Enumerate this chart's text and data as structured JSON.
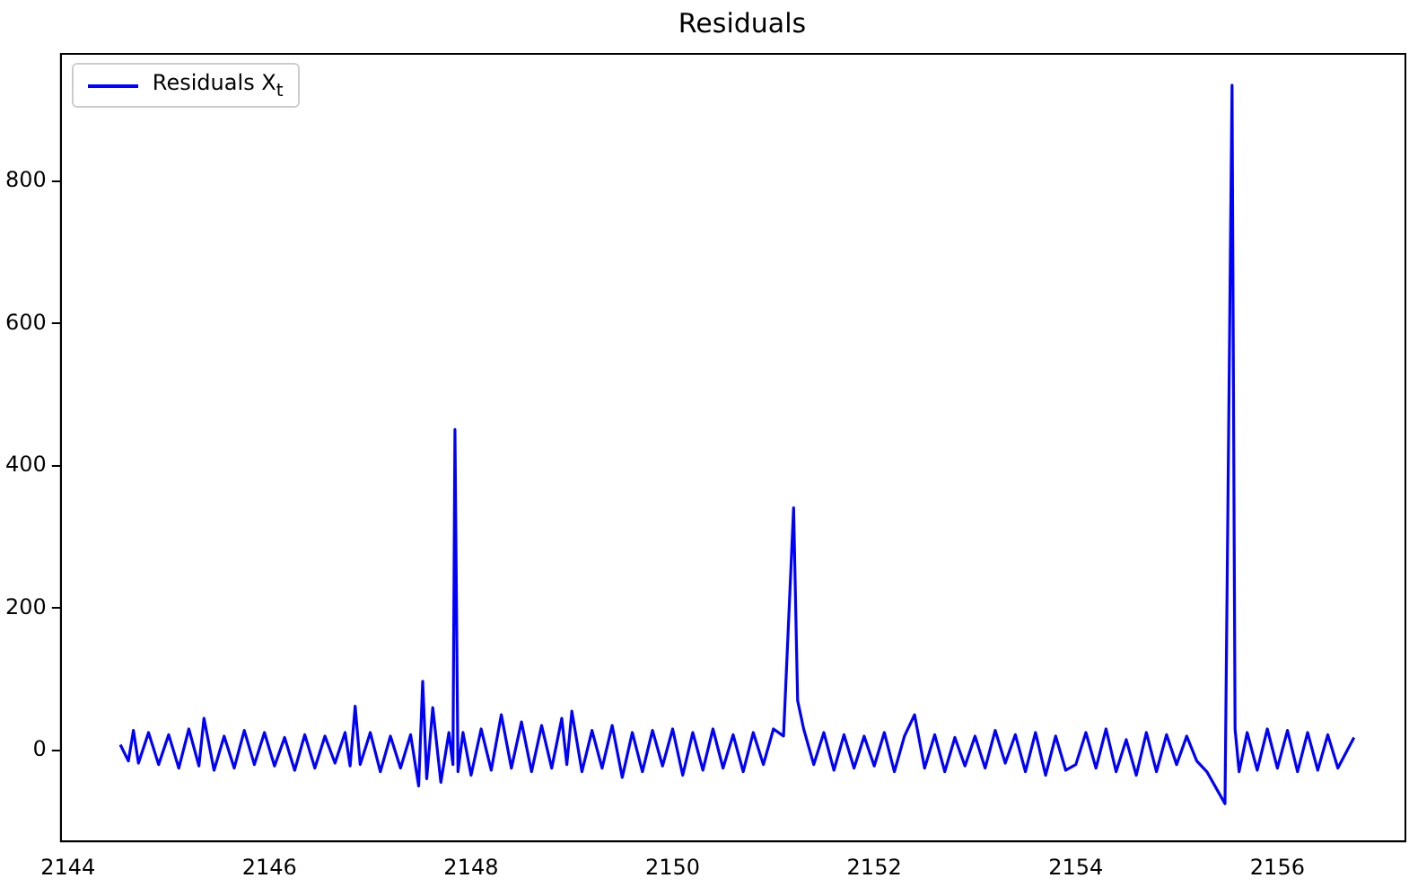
{
  "chart_data": {
    "type": "line",
    "title": "Residuals",
    "legend": "top left",
    "xlim": [
      2143.93,
      2157.27
    ],
    "ylim": [
      -128,
      979
    ],
    "xticks": [
      2144,
      2146,
      2148,
      2150,
      2152,
      2154,
      2156
    ],
    "yticks": [
      0,
      200,
      400,
      600,
      800
    ],
    "grid": false,
    "line_style": "solid",
    "marker": "none",
    "series": [
      {
        "name": "Residuals X$_{t}$",
        "color": "#0000ff",
        "x": [
          2144.52,
          2144.6,
          2144.65,
          2144.7,
          2144.8,
          2144.9,
          2145.0,
          2145.1,
          2145.2,
          2145.3,
          2145.35,
          2145.45,
          2145.55,
          2145.65,
          2145.75,
          2145.85,
          2145.95,
          2146.05,
          2146.15,
          2146.25,
          2146.35,
          2146.45,
          2146.55,
          2146.65,
          2146.75,
          2146.8,
          2146.85,
          2146.9,
          2147.0,
          2147.1,
          2147.2,
          2147.3,
          2147.4,
          2147.48,
          2147.52,
          2147.56,
          2147.62,
          2147.7,
          2147.78,
          2147.82,
          2147.84,
          2147.87,
          2147.92,
          2148.0,
          2148.1,
          2148.2,
          2148.3,
          2148.4,
          2148.5,
          2148.6,
          2148.7,
          2148.8,
          2148.9,
          2148.95,
          2149.0,
          2149.1,
          2149.2,
          2149.3,
          2149.4,
          2149.5,
          2149.6,
          2149.7,
          2149.8,
          2149.9,
          2150.0,
          2150.1,
          2150.2,
          2150.3,
          2150.4,
          2150.5,
          2150.6,
          2150.7,
          2150.8,
          2150.9,
          2151.0,
          2151.1,
          2151.2,
          2151.24,
          2151.3,
          2151.4,
          2151.5,
          2151.6,
          2151.7,
          2151.8,
          2151.9,
          2152.0,
          2152.1,
          2152.2,
          2152.3,
          2152.4,
          2152.5,
          2152.6,
          2152.7,
          2152.8,
          2152.9,
          2153.0,
          2153.1,
          2153.2,
          2153.3,
          2153.4,
          2153.5,
          2153.6,
          2153.7,
          2153.8,
          2153.9,
          2154.0,
          2154.1,
          2154.2,
          2154.3,
          2154.4,
          2154.5,
          2154.6,
          2154.7,
          2154.8,
          2154.9,
          2155.0,
          2155.1,
          2155.2,
          2155.3,
          2155.4,
          2155.48,
          2155.55,
          2155.58,
          2155.62,
          2155.7,
          2155.8,
          2155.9,
          2156.0,
          2156.1,
          2156.2,
          2156.3,
          2156.4,
          2156.5,
          2156.6,
          2156.76
        ],
        "values": [
          8,
          -15,
          28,
          -18,
          25,
          -20,
          22,
          -25,
          30,
          -22,
          45,
          -28,
          20,
          -25,
          28,
          -20,
          25,
          -22,
          18,
          -28,
          22,
          -25,
          20,
          -18,
          25,
          -22,
          62,
          -20,
          25,
          -30,
          20,
          -25,
          22,
          -50,
          97,
          -40,
          60,
          -45,
          25,
          -20,
          451,
          -30,
          25,
          -35,
          30,
          -28,
          50,
          -25,
          40,
          -30,
          35,
          -25,
          45,
          -20,
          55,
          -30,
          28,
          -25,
          35,
          -38,
          25,
          -30,
          28,
          -22,
          30,
          -35,
          25,
          -28,
          30,
          -25,
          22,
          -30,
          25,
          -20,
          30,
          20,
          341,
          70,
          30,
          -20,
          25,
          -28,
          22,
          -25,
          20,
          -22,
          25,
          -30,
          20,
          50,
          -25,
          22,
          -30,
          18,
          -22,
          20,
          -25,
          28,
          -18,
          22,
          -30,
          25,
          -35,
          20,
          -28,
          -20,
          25,
          -25,
          30,
          -30,
          15,
          -35,
          25,
          -30,
          22,
          -20,
          20,
          -15,
          -30,
          -55,
          -75,
          935,
          30,
          -30,
          25,
          -28,
          30,
          -25,
          28,
          -30,
          25,
          -28,
          22,
          -25,
          18
        ]
      }
    ]
  }
}
